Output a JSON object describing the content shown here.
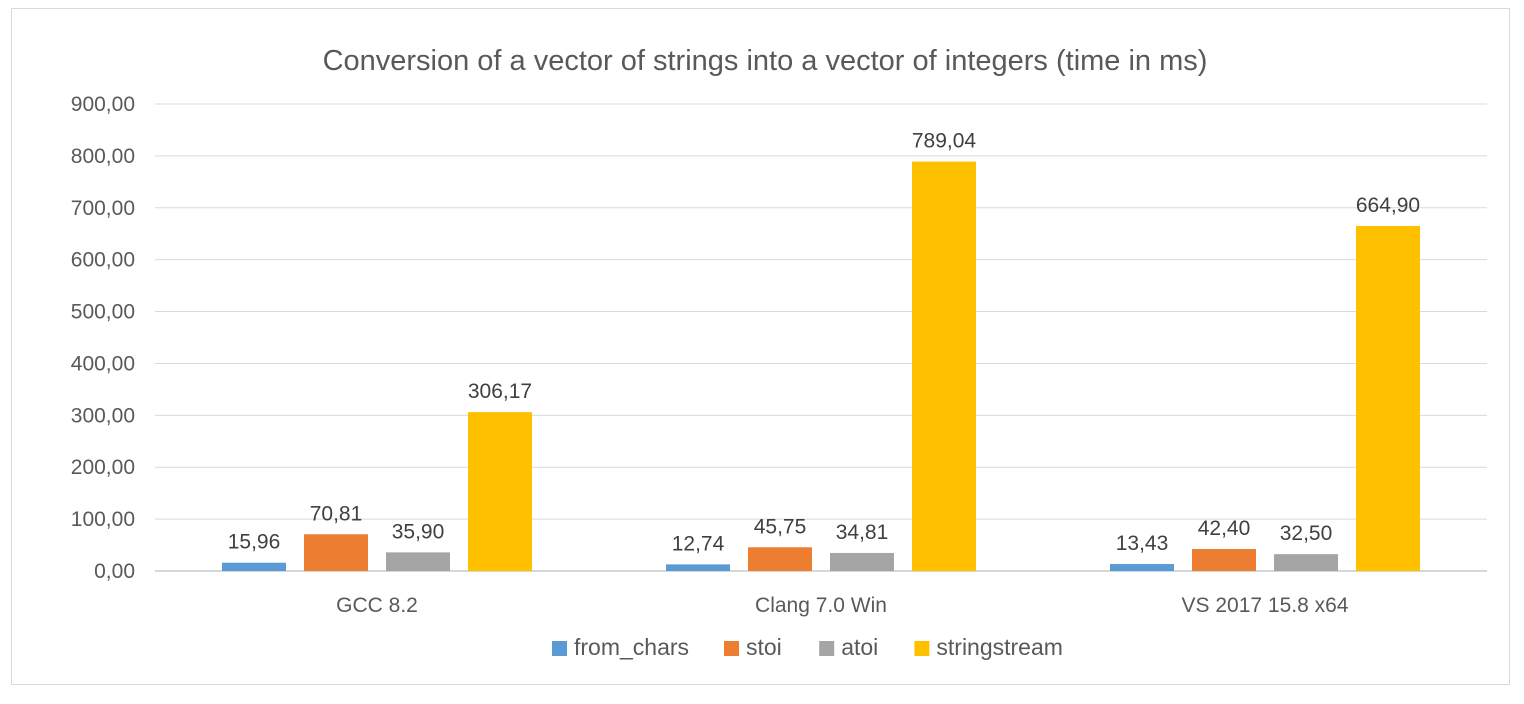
{
  "chart_data": {
    "type": "bar",
    "title": "Conversion of a vector of strings into a vector of integers (time in ms)",
    "xlabel": "",
    "ylabel": "",
    "ylim": [
      0,
      900
    ],
    "yticks": [
      0,
      100,
      200,
      300,
      400,
      500,
      600,
      700,
      800,
      900
    ],
    "ytick_labels": [
      "0,00",
      "100,00",
      "200,00",
      "300,00",
      "400,00",
      "500,00",
      "600,00",
      "700,00",
      "800,00",
      "900,00"
    ],
    "grid": true,
    "legend_position": "bottom",
    "categories": [
      "GCC 8.2",
      "Clang 7.0 Win",
      "VS 2017 15.8 x64"
    ],
    "series": [
      {
        "name": "from_chars",
        "color": "#5b9bd5",
        "values": [
          15.96,
          12.74,
          13.43
        ],
        "labels": [
          "15,96",
          "12,74",
          "13,43"
        ]
      },
      {
        "name": "stoi",
        "color": "#ed7d31",
        "values": [
          70.81,
          45.75,
          42.4
        ],
        "labels": [
          "70,81",
          "45,75",
          "42,40"
        ]
      },
      {
        "name": "atoi",
        "color": "#a5a5a5",
        "values": [
          35.9,
          34.81,
          32.5
        ],
        "labels": [
          "35,90",
          "34,81",
          "32,50"
        ]
      },
      {
        "name": "stringstream",
        "color": "#ffc000",
        "values": [
          306.17,
          789.04,
          664.9
        ],
        "labels": [
          "306,17",
          "789,04",
          "664,90"
        ]
      }
    ]
  }
}
